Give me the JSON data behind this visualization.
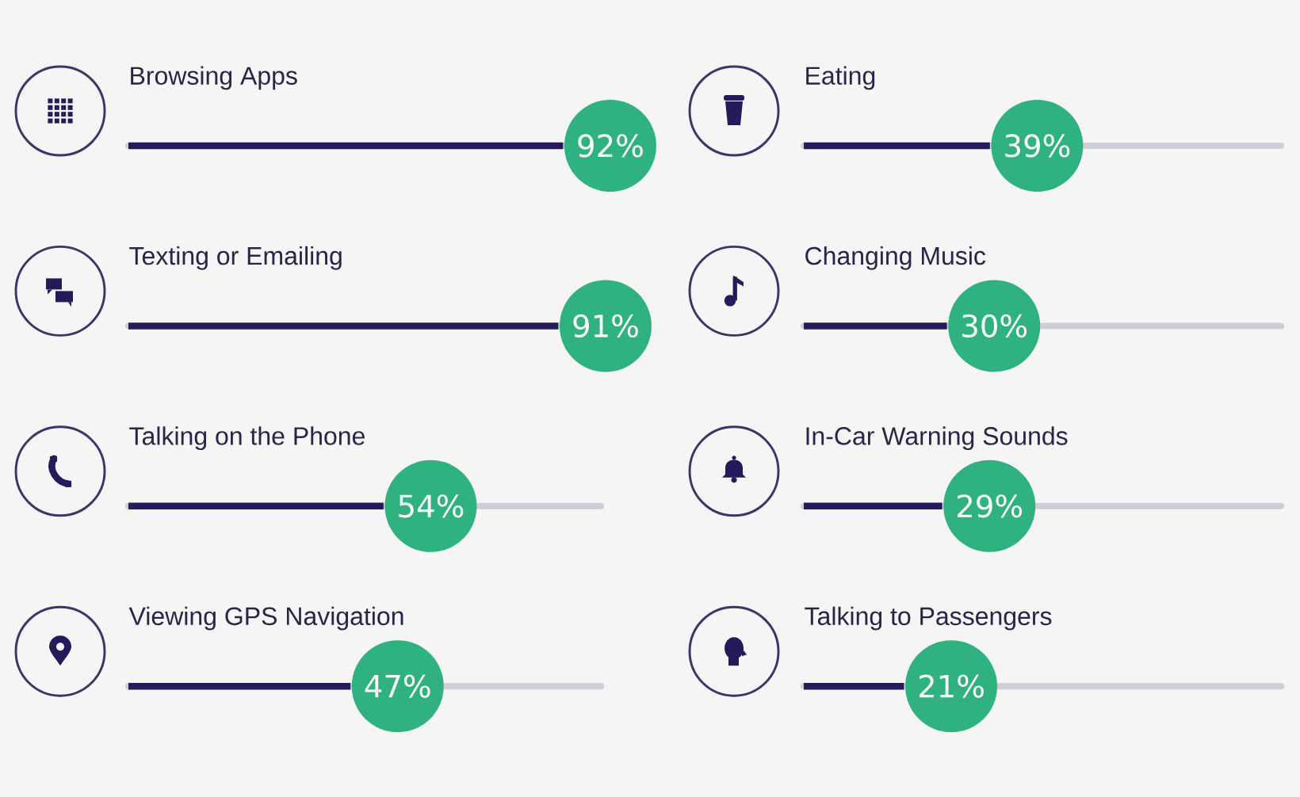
{
  "chart_data": [
    {
      "type": "bar",
      "orientation": "horizontal",
      "categories": [
        "Browsing Apps",
        "Texting or Emailing",
        "Talking on the Phone",
        "Viewing GPS Navigation"
      ],
      "values": [
        92,
        91,
        54,
        47
      ],
      "value_labels": [
        "92%",
        "91%",
        "54%",
        "47%"
      ],
      "color": "#251b5a",
      "xlim": [
        0,
        100
      ],
      "tick_labels": "y"
    },
    {
      "type": "bar",
      "orientation": "horizontal",
      "categories": [
        "Eating",
        "Changing Music",
        "In-Car Warning Sounds",
        "Talking to Passengers"
      ],
      "values": [
        39,
        30,
        29,
        21
      ],
      "value_labels": [
        "39%",
        "30%",
        "29%",
        "21%"
      ],
      "color": "#251b5a",
      "xlim": [
        0,
        100
      ],
      "tick_labels": "y"
    }
  ]
}
